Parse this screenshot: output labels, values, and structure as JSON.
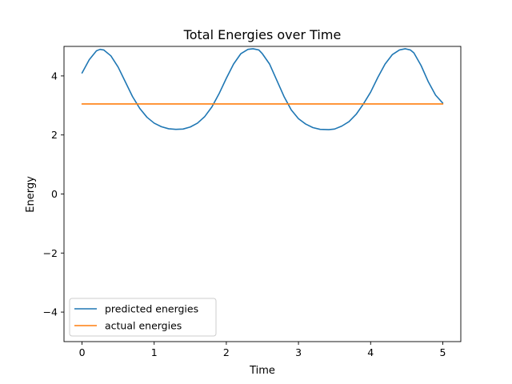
{
  "chart_data": {
    "type": "line",
    "title": "Total Energies over Time",
    "xlabel": "Time",
    "ylabel": "Energy",
    "xlim": [
      -0.25,
      5.25
    ],
    "ylim": [
      -5.0,
      5.0
    ],
    "xticks": [
      0,
      1,
      2,
      3,
      4,
      5
    ],
    "yticks": [
      -4,
      -2,
      0,
      2,
      4
    ],
    "xtick_labels": [
      "0",
      "1",
      "2",
      "3",
      "4",
      "5"
    ],
    "ytick_labels": [
      "−4",
      "−2",
      "0",
      "2",
      "4"
    ],
    "grid": false,
    "legend_placement": "lower-left",
    "series": [
      {
        "name": "predicted energies",
        "color": "#1f77b4",
        "x": [
          0.0,
          0.1,
          0.2,
          0.25,
          0.3,
          0.4,
          0.5,
          0.6,
          0.7,
          0.8,
          0.9,
          1.0,
          1.1,
          1.2,
          1.3,
          1.4,
          1.5,
          1.6,
          1.7,
          1.8,
          1.9,
          2.0,
          2.1,
          2.2,
          2.3,
          2.37,
          2.45,
          2.5,
          2.6,
          2.7,
          2.8,
          2.9,
          3.0,
          3.1,
          3.2,
          3.3,
          3.42,
          3.5,
          3.6,
          3.7,
          3.8,
          3.9,
          4.0,
          4.1,
          4.2,
          4.3,
          4.4,
          4.48,
          4.55,
          4.6,
          4.7,
          4.8,
          4.9,
          5.0
        ],
        "y": [
          4.1,
          4.55,
          4.85,
          4.9,
          4.88,
          4.68,
          4.3,
          3.8,
          3.3,
          2.9,
          2.6,
          2.4,
          2.28,
          2.21,
          2.19,
          2.2,
          2.27,
          2.4,
          2.62,
          2.95,
          3.4,
          3.92,
          4.4,
          4.75,
          4.9,
          4.92,
          4.88,
          4.75,
          4.4,
          3.85,
          3.3,
          2.85,
          2.55,
          2.37,
          2.25,
          2.19,
          2.18,
          2.2,
          2.3,
          2.45,
          2.7,
          3.05,
          3.45,
          3.95,
          4.4,
          4.72,
          4.88,
          4.92,
          4.88,
          4.78,
          4.35,
          3.8,
          3.35,
          3.08
        ]
      },
      {
        "name": "actual energies",
        "color": "#ff7f0e",
        "x": [
          0.0,
          5.0
        ],
        "y": [
          3.05,
          3.05
        ]
      }
    ]
  }
}
